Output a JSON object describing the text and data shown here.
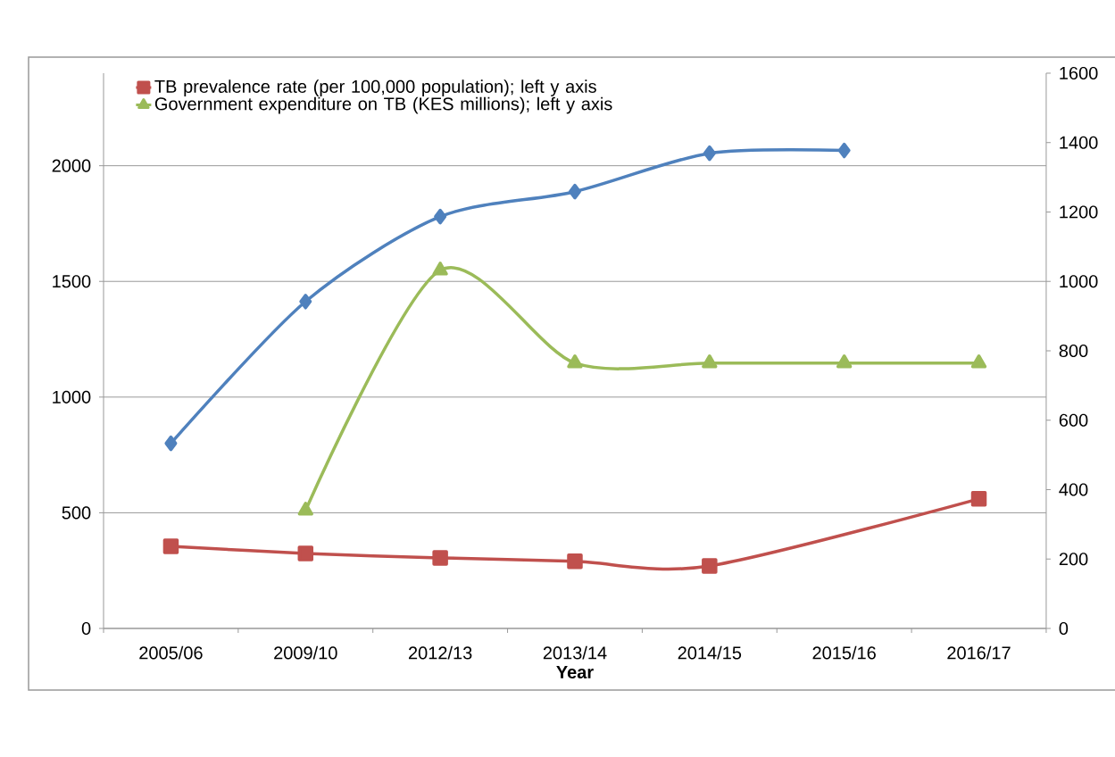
{
  "chart_data": {
    "type": "line",
    "xlabel": "Year",
    "categories": [
      "2005/06",
      "2009/10",
      "2012/13",
      "2013/14",
      "2014/15",
      "2015/16",
      "2016/17"
    ],
    "series": [
      {
        "name": "TB prevalence rate (per 100,000 population); left y axis",
        "color": "#c0504d",
        "marker": "square",
        "values": [
          355,
          324,
          305,
          290,
          270,
          null,
          560
        ]
      },
      {
        "name": "Government expenditure on TB (KES millions); left y axis",
        "color": "#9bbb59",
        "marker": "triangle",
        "values": [
          null,
          510,
          1548,
          1147,
          1147,
          1147,
          1147
        ]
      },
      {
        "color": "#4f81bd",
        "marker": "diamond",
        "values": [
          800,
          1413,
          1780,
          1888,
          2054,
          2066,
          null
        ]
      }
    ],
    "ylim": [
      0,
      2400
    ],
    "yticks": [
      0,
      500,
      1000,
      1500,
      2000
    ],
    "y2lim": [
      0,
      1600
    ],
    "y2ticks": [
      0,
      200,
      400,
      600,
      800,
      1000,
      1200,
      1400,
      1600
    ],
    "grid": "y",
    "legend": "top left"
  }
}
